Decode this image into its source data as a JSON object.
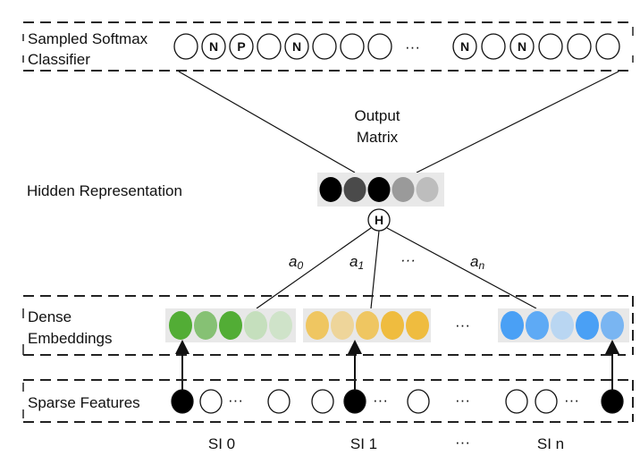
{
  "softmax": {
    "label_line1": "Sampled Softmax",
    "label_line2": "Classifier",
    "left_nodes": [
      "",
      "N",
      "P",
      "",
      "N",
      "",
      "",
      ""
    ],
    "ellipsis": "···",
    "right_nodes": [
      "N",
      "",
      "N",
      "",
      "",
      ""
    ]
  },
  "output_matrix": {
    "line1": "Output",
    "line2": "Matrix"
  },
  "hidden": {
    "label": "Hidden Representation",
    "node_colors": [
      "#000000",
      "#4a4a4a",
      "#000000",
      "#9a9a9a",
      "#bdbdbd"
    ],
    "h_label": "H"
  },
  "attention": {
    "a0": "a",
    "a0_sub": "0",
    "a1": "a",
    "a1_sub": "1",
    "ellipsis": "···",
    "an": "a",
    "an_sub": "n"
  },
  "dense": {
    "label_line1": "Dense",
    "label_line2": "Embeddings",
    "ellipsis": "···",
    "groups": [
      {
        "colors": [
          "#52ad35",
          "#86c174",
          "#52ad35",
          "#c5dfbd",
          "#cfe3c9"
        ]
      },
      {
        "colors": [
          "#efc661",
          "#eed59a",
          "#efc661",
          "#efbc3f",
          "#efbc3f"
        ]
      },
      {
        "colors": [
          "#4aa0f5",
          "#5eaaf5",
          "#b9d6f2",
          "#4aa0f5",
          "#79b5f2"
        ]
      }
    ]
  },
  "sparse": {
    "label": "Sparse Features",
    "ellipsis": "···"
  },
  "si_labels": {
    "si0": "SI 0",
    "si1": "SI 1",
    "ellipsis": "···",
    "sin": "SI n"
  }
}
